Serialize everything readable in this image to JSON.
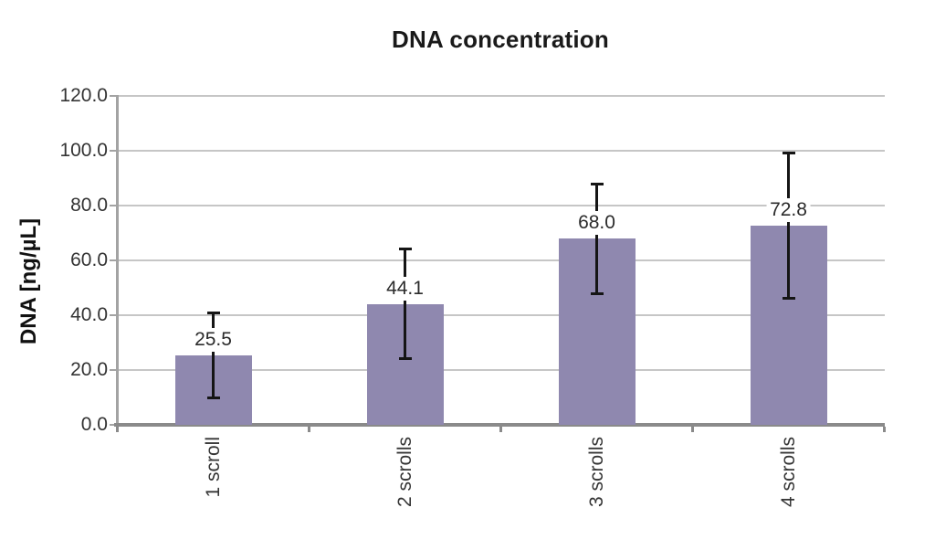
{
  "chart_data": {
    "type": "bar",
    "title": "DNA concentration",
    "ylabel": "DNA [ng/µL]",
    "xlabel": "",
    "categories": [
      "1 scroll",
      "2 scrolls",
      "3 scrolls",
      "4 scrolls"
    ],
    "values": [
      25.5,
      44.1,
      68.0,
      72.8
    ],
    "data_labels": [
      "25.5",
      "44.1",
      "68.0",
      "72.8"
    ],
    "errors_plus": [
      15.5,
      20.0,
      20.0,
      26.5
    ],
    "errors_minus": [
      15.5,
      20.0,
      20.0,
      26.5
    ],
    "ylim": [
      0,
      120
    ],
    "ytick_step": 20,
    "ytick_labels": [
      "0.0",
      "20.0",
      "40.0",
      "60.0",
      "80.0",
      "100.0",
      "120.0"
    ],
    "grid": true,
    "legend": "none",
    "colors": {
      "bar": "#8F88AF",
      "grid": "#c6c6c6",
      "axis_y": "#a3a3a3",
      "axis_x": "#8a8a8a",
      "error": "#151515",
      "tick_text": "#343434",
      "title_text": "#1a1a1a"
    }
  }
}
